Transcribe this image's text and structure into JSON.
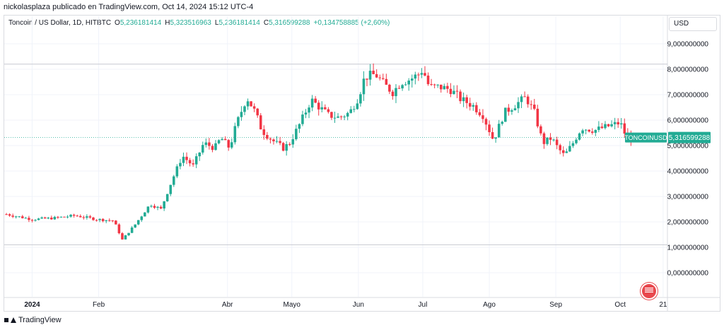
{
  "header": {
    "publisher_line": "nickolasplaza publicado en TradingView.com, Oct 14, 2024 15:12 UTC-4"
  },
  "legend": {
    "symbol": "Toncoin / US Dollar, 1D, HITBTC",
    "open_label": "O",
    "open": "5,236181414",
    "high_label": "H",
    "high": "5,323516963",
    "low_label": "L",
    "low": "5,236181414",
    "close_label": "C",
    "close": "5,316599288",
    "change": "+0,134758885 (+2,60%)"
  },
  "currency_button": "USD",
  "price_tag": {
    "symbol": "TONCOINUSD",
    "value": "5,316599288"
  },
  "footer": {
    "brand": "TradingView"
  },
  "colors": {
    "up": "#22ab94",
    "down": "#f23645",
    "price_line": "#22ab94",
    "grid": "#f0f3fa",
    "text": "#131722"
  },
  "chart_data": {
    "type": "candlestick",
    "series_name": "TONCOINUSD",
    "y_ticks": [
      "9,000000000",
      "8,000000000",
      "7,000000000",
      "6,000000000",
      "5,000000000",
      "4,000000000",
      "3,000000000",
      "2,000000000",
      "1,000000000",
      "0,000000000"
    ],
    "y_tick_values": [
      9,
      8,
      7,
      6,
      5,
      4,
      3,
      2,
      1,
      0
    ],
    "ylim": [
      -0.85,
      9.5
    ],
    "x_ticks": [
      {
        "label": "2024",
        "day": 0,
        "bold": true
      },
      {
        "label": "Feb",
        "day": 31
      },
      {
        "label": "Abr",
        "day": 91
      },
      {
        "label": "Mayo",
        "day": 121
      },
      {
        "label": "Jun",
        "day": 152
      },
      {
        "label": "Jul",
        "day": 182
      },
      {
        "label": "Ago",
        "day": 213
      },
      {
        "label": "Sep",
        "day": 244
      },
      {
        "label": "Oct",
        "day": 274
      },
      {
        "label": "21",
        "day": 294
      }
    ],
    "xlim_days": [
      -13,
      296
    ],
    "horizontal_lines": [
      8.2,
      1.1
    ],
    "current_price": 5.3166,
    "close_path_days": [
      -12,
      0,
      10,
      20,
      30,
      38,
      42,
      48,
      55,
      60,
      65,
      70,
      75,
      80,
      85,
      88,
      90,
      92,
      95,
      100,
      104,
      107,
      112,
      117,
      120,
      125,
      130,
      138,
      143,
      148,
      152,
      155,
      160,
      164,
      168,
      172,
      176,
      180,
      182,
      185,
      190,
      195,
      200,
      205,
      210,
      215,
      220,
      225,
      230,
      234,
      238,
      242,
      245,
      248,
      252,
      256,
      262,
      266,
      270,
      274,
      276,
      279,
      283,
      286
    ],
    "close_path": [
      2.3,
      2.1,
      2.15,
      2.25,
      2.1,
      2.05,
      1.3,
      1.9,
      2.7,
      2.5,
      3.6,
      4.6,
      4.2,
      5.1,
      4.9,
      5.3,
      5.1,
      4.9,
      5.8,
      6.9,
      6.3,
      5.6,
      5.2,
      4.9,
      5.1,
      5.9,
      6.8,
      6.2,
      6.1,
      6.3,
      6.9,
      7.7,
      7.8,
      7.4,
      7.1,
      7.5,
      7.6,
      7.8,
      8.0,
      7.3,
      7.3,
      7.2,
      6.8,
      6.6,
      6.2,
      5.2,
      6.3,
      6.6,
      6.9,
      6.3,
      5.1,
      5.3,
      4.9,
      4.6,
      5.1,
      5.7,
      5.6,
      5.7,
      5.8,
      5.9,
      5.5,
      5.3,
      5.25,
      5.3166
    ]
  }
}
